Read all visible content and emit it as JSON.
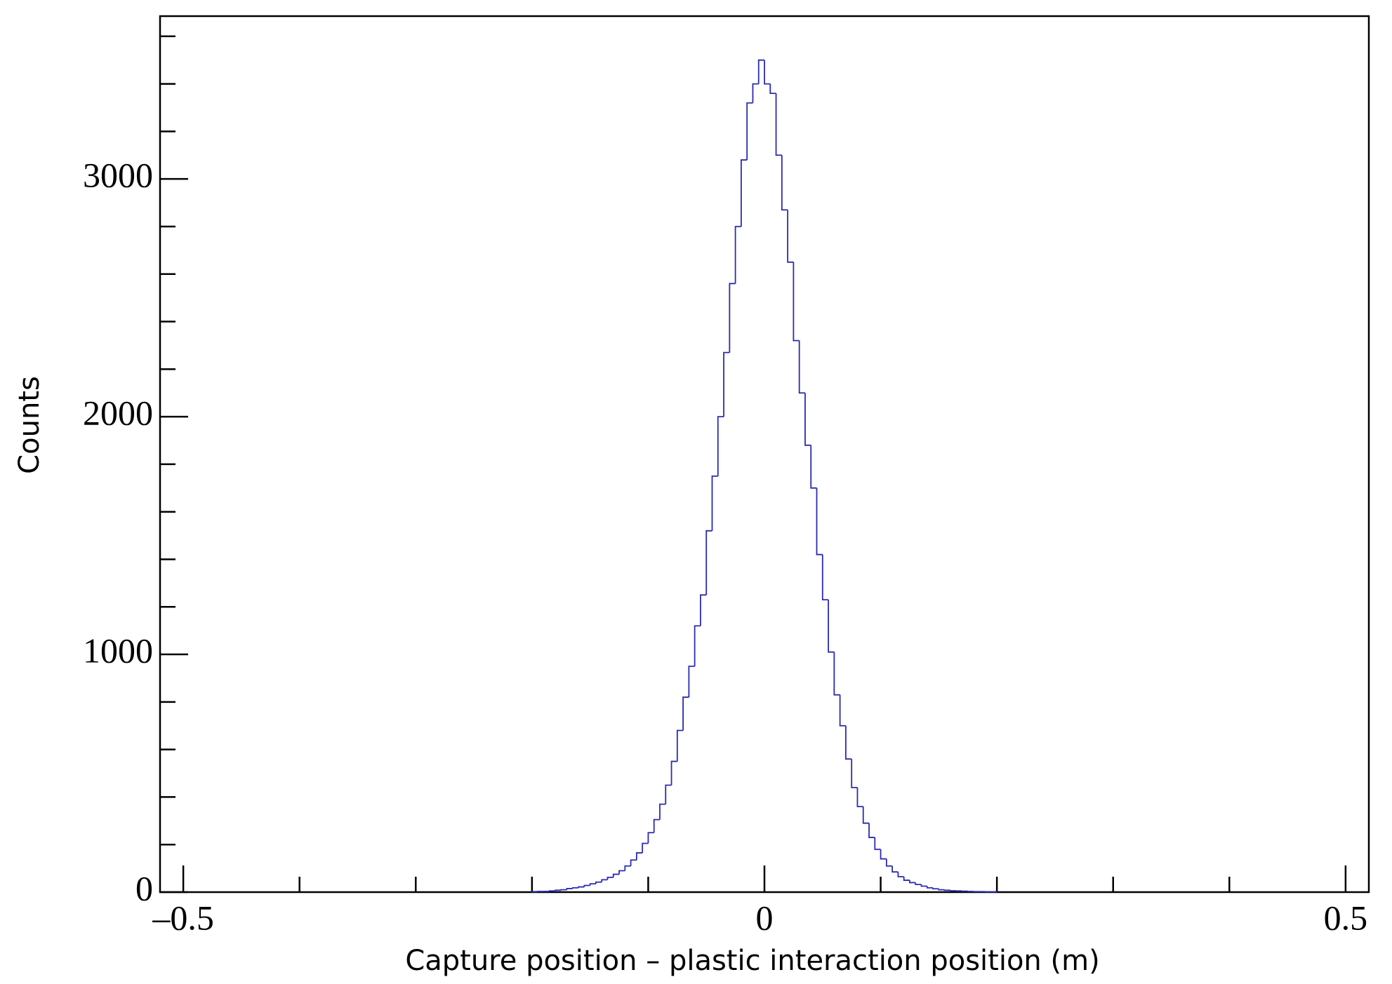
{
  "chart_data": {
    "type": "histogram",
    "x_label": "Capture position – plastic interaction position (m)",
    "y_label": "Counts",
    "color": "#2b2bb0",
    "xlim": [
      -0.52,
      0.52
    ],
    "ylim": [
      0,
      3685
    ],
    "xticks": [
      {
        "value": -0.5,
        "label": "–0.5"
      },
      0,
      0.5
    ],
    "xminorticks": [
      -0.4,
      -0.3,
      -0.2,
      -0.1,
      0.1,
      0.2,
      0.3,
      0.4
    ],
    "yticks": [
      0,
      1000,
      2000,
      3000
    ],
    "yminorticks": [
      200,
      400,
      600,
      800,
      1200,
      1400,
      1600,
      1800,
      2200,
      2400,
      2600,
      2800,
      3200,
      3400,
      3600
    ],
    "bins": [
      -0.2,
      -0.195,
      -0.19,
      -0.185,
      -0.18,
      -0.175,
      -0.17,
      -0.165,
      -0.16,
      -0.155,
      -0.15,
      -0.145,
      -0.14,
      -0.135,
      -0.13,
      -0.125,
      -0.12,
      -0.115,
      -0.11,
      -0.105,
      -0.1,
      -0.095,
      -0.09,
      -0.085,
      -0.08,
      -0.075,
      -0.07,
      -0.065,
      -0.06,
      -0.055,
      -0.05,
      -0.045,
      -0.04,
      -0.035,
      -0.03,
      -0.025,
      -0.02,
      -0.015,
      -0.01,
      -0.005,
      0,
      0.005,
      0.01,
      0.015,
      0.02,
      0.025,
      0.03,
      0.035,
      0.04,
      0.045,
      0.05,
      0.055,
      0.06,
      0.065,
      0.07,
      0.075,
      0.08,
      0.085,
      0.09,
      0.095,
      0.1,
      0.105,
      0.11,
      0.115,
      0.12,
      0.125,
      0.13,
      0.135,
      0.14,
      0.145,
      0.15,
      0.155,
      0.16,
      0.165,
      0.17,
      0.175,
      0.18,
      0.185,
      0.19,
      0.195,
      0.2
    ],
    "values": [
      2,
      3,
      3,
      5,
      8,
      10,
      15,
      18,
      22,
      28,
      35,
      42,
      52,
      62,
      75,
      90,
      110,
      135,
      165,
      205,
      250,
      305,
      370,
      450,
      550,
      680,
      820,
      950,
      1120,
      1250,
      1520,
      1750,
      2000,
      2270,
      2560,
      2800,
      3080,
      3320,
      3400,
      3500,
      3400,
      3360,
      3100,
      2870,
      2650,
      2320,
      2100,
      1880,
      1700,
      1420,
      1230,
      1010,
      830,
      700,
      560,
      440,
      360,
      290,
      230,
      180,
      140,
      110,
      85,
      65,
      50,
      40,
      32,
      25,
      18,
      14,
      10,
      8,
      6,
      5,
      4,
      3,
      2,
      2,
      1,
      1
    ]
  }
}
